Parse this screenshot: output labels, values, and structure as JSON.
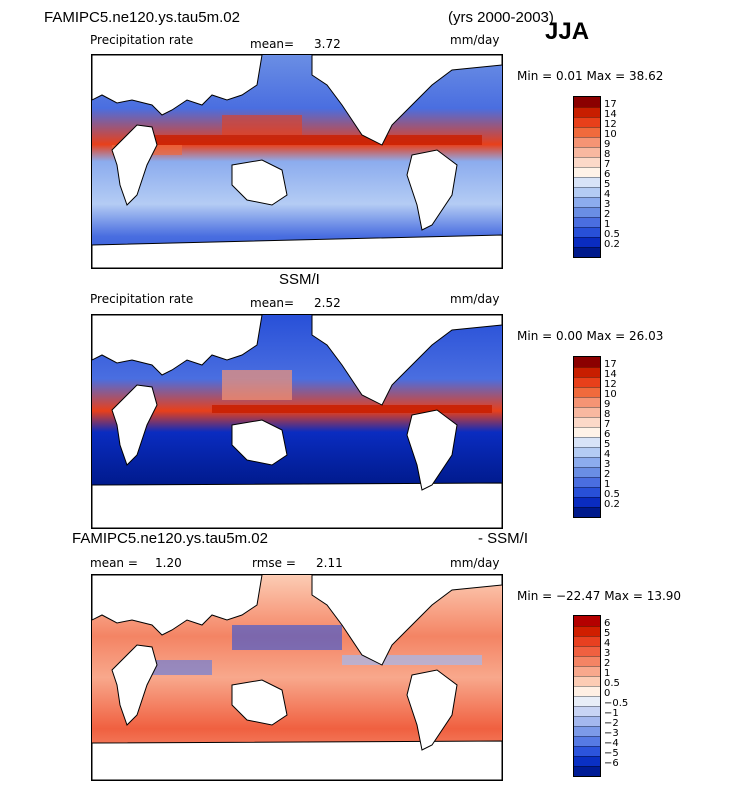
{
  "header": {
    "model_title": "FAMIPC5.ne120.ys.tau5m.02",
    "years": "(yrs 2000-2003)",
    "season": "JJA"
  },
  "panels": [
    {
      "title": "",
      "variable": "Precipitation rate",
      "mean_label": "mean=",
      "mean_value": "3.72",
      "units": "mm/day",
      "minmax": "Min =   0.01 Max =  38.62",
      "colorbar_labels": [
        "17",
        "14",
        "12",
        "10",
        "9",
        "8",
        "7",
        "6",
        "5",
        "4",
        "3",
        "2",
        "1",
        "0.5",
        "0.2"
      ],
      "colors": [
        "#8b0000",
        "#c81e00",
        "#e8401a",
        "#f06a3c",
        "#f59474",
        "#f8b8a0",
        "#fcd9c8",
        "#fff3e8",
        "#d8e4f8",
        "#b4ccf4",
        "#8cacee",
        "#6a8ee4",
        "#4a6ee0",
        "#2850d8",
        "#0a2cc0",
        "#001a8c"
      ]
    },
    {
      "title": "SSM/I",
      "variable": "Precipitation rate",
      "mean_label": "mean=",
      "mean_value": "2.52",
      "units": "mm/day",
      "minmax": "Min =   0.00 Max =  26.03",
      "colorbar_labels": [
        "17",
        "14",
        "12",
        "10",
        "9",
        "8",
        "7",
        "6",
        "5",
        "4",
        "3",
        "2",
        "1",
        "0.5",
        "0.2"
      ],
      "colors": [
        "#8b0000",
        "#c81e00",
        "#e8401a",
        "#f06a3c",
        "#f59474",
        "#f8b8a0",
        "#fcd9c8",
        "#fff3e8",
        "#d8e4f8",
        "#b4ccf4",
        "#8cacee",
        "#6a8ee4",
        "#4a6ee0",
        "#2850d8",
        "#0a2cc0",
        "#001a8c"
      ]
    },
    {
      "title": "FAMIPC5.ne120.ys.tau5m.02",
      "title_right": "- SSM/I",
      "mean_label": "mean =",
      "mean_value": "1.20",
      "rmse_label": "rmse =",
      "rmse_value": "2.11",
      "units": "mm/day",
      "minmax": "Min = −22.47 Max =  13.90",
      "colorbar_labels": [
        "6",
        "5",
        "4",
        "3",
        "2",
        "1",
        "0.5",
        "0",
        "−0.5",
        "−1",
        "−2",
        "−3",
        "−4",
        "−5",
        "−6"
      ],
      "colors": [
        "#b40000",
        "#d01e00",
        "#e84020",
        "#f06040",
        "#f48464",
        "#f8a88c",
        "#fcccb4",
        "#fff0e4",
        "#e8eef8",
        "#c8d4f4",
        "#a4b8ee",
        "#7c9ae8",
        "#567ae4",
        "#2c54dc",
        "#0a30c4",
        "#001c96"
      ]
    }
  ]
}
